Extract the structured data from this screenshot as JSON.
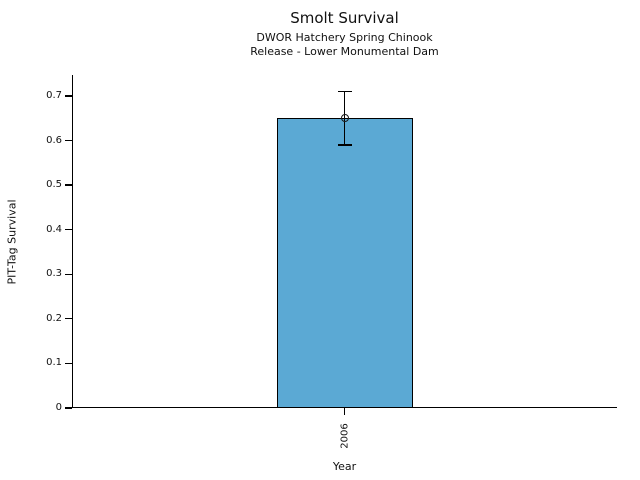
{
  "figure": {
    "background_color": "#ffffff",
    "text_color": "#111111",
    "spine_color": "#000000"
  },
  "chart_data": {
    "type": "bar",
    "title": "Smolt Survival",
    "subtitle_line1": "DWOR Hatchery Spring Chinook",
    "subtitle_line2": "Release - Lower Monumental Dam",
    "xlabel": "Year",
    "ylabel": "PIT-Tag Survival",
    "categories": [
      "2006"
    ],
    "values": [
      0.65
    ],
    "error_low": [
      0.59
    ],
    "error_high": [
      0.71
    ],
    "marker": "open-circle",
    "yticks": [
      0,
      0.1,
      0.2,
      0.3,
      0.4,
      0.5,
      0.6,
      0.7
    ],
    "ytick_labels": [
      "0",
      "0.1",
      "0.2",
      "0.3",
      "0.4",
      "0.5",
      "0.6",
      "0.7"
    ],
    "ylim": [
      0,
      0.747
    ],
    "grid": false,
    "legend": null,
    "bar_color": "#5BA9D4",
    "bar_edge_color": "#000000",
    "error_color": "#000000"
  }
}
